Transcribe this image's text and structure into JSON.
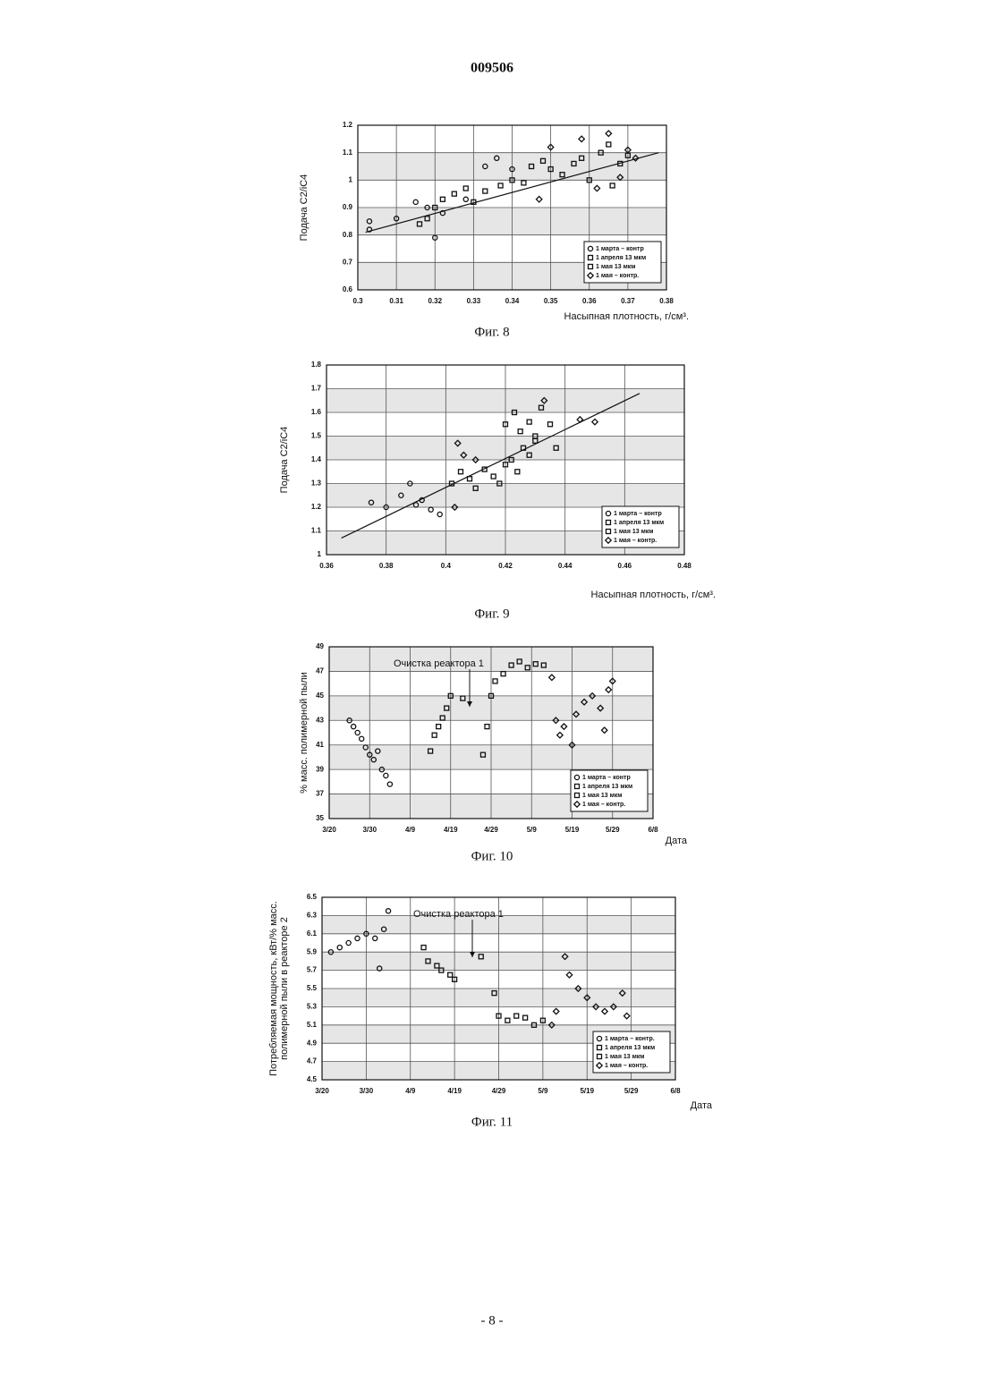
{
  "header": "009506",
  "footer": "- 8 -",
  "chart_data": [
    {
      "type": "scatter",
      "caption": "Фиг. 8",
      "ylabel": [
        "Подача C2/iC4"
      ],
      "xlabel": "Насыпная плотность, г/см³.",
      "xlim": [
        0.3,
        0.38
      ],
      "xticks": [
        0.3,
        0.31,
        0.32,
        0.33,
        0.34,
        0.35,
        0.36,
        0.37,
        0.38
      ],
      "ylim": [
        0.6,
        1.2
      ],
      "yticks": [
        0.6,
        0.7,
        0.8,
        0.9,
        1,
        1.1,
        1.2
      ],
      "grid": true,
      "legend": "lower right",
      "trendline": {
        "x": [
          0.302,
          0.378
        ],
        "y": [
          0.81,
          1.1
        ]
      },
      "series": [
        {
          "name": "1 марта – контр",
          "marker": "circle",
          "color": "#111111",
          "x": [
            0.303,
            0.303,
            0.31,
            0.315,
            0.318,
            0.32,
            0.322,
            0.328,
            0.333,
            0.336,
            0.34
          ],
          "values": [
            0.85,
            0.82,
            0.86,
            0.92,
            0.9,
            0.79,
            0.88,
            0.93,
            1.05,
            1.08,
            1.04
          ]
        },
        {
          "name": "1 апреля 13 мкм",
          "marker": "square",
          "color": "#111111",
          "x": [
            0.316,
            0.318,
            0.32,
            0.322,
            0.325,
            0.328,
            0.33,
            0.333,
            0.337,
            0.34,
            0.343
          ],
          "values": [
            0.84,
            0.86,
            0.9,
            0.93,
            0.95,
            0.97,
            0.92,
            0.96,
            0.98,
            1.0,
            0.99
          ]
        },
        {
          "name": "1 мая 13 мкм",
          "marker": "square",
          "color": "#111111",
          "x": [
            0.345,
            0.348,
            0.35,
            0.353,
            0.356,
            0.358,
            0.36,
            0.363,
            0.365,
            0.368,
            0.37,
            0.366
          ],
          "values": [
            1.05,
            1.07,
            1.04,
            1.02,
            1.06,
            1.08,
            1.0,
            1.1,
            1.13,
            1.06,
            1.09,
            0.98
          ]
        },
        {
          "name": "1 мая – контр.",
          "marker": "diamond",
          "color": "#111111",
          "x": [
            0.347,
            0.35,
            0.358,
            0.362,
            0.365,
            0.368,
            0.37,
            0.372
          ],
          "values": [
            0.93,
            1.12,
            1.15,
            0.97,
            1.17,
            1.01,
            1.11,
            1.08
          ]
        }
      ]
    },
    {
      "type": "scatter",
      "caption": "Фиг. 9",
      "ylabel": [
        "Подача C2/iC4"
      ],
      "xlabel": "Насыпная плотность, г/см³.",
      "xlim": [
        0.36,
        0.48
      ],
      "xticks": [
        0.36,
        0.38,
        0.4,
        0.42,
        0.44,
        0.46,
        0.48
      ],
      "ylim": [
        1,
        1.8
      ],
      "yticks": [
        1,
        1.1,
        1.2,
        1.3,
        1.4,
        1.5,
        1.6,
        1.7,
        1.8
      ],
      "grid": true,
      "legend": "lower right",
      "trendline": {
        "x": [
          0.365,
          0.465
        ],
        "y": [
          1.07,
          1.68
        ]
      },
      "series": [
        {
          "name": "1 марта – контр",
          "marker": "circle",
          "color": "#111111",
          "x": [
            0.375,
            0.38,
            0.385,
            0.39,
            0.395,
            0.398,
            0.388,
            0.392
          ],
          "values": [
            1.22,
            1.2,
            1.25,
            1.21,
            1.19,
            1.17,
            1.3,
            1.23
          ]
        },
        {
          "name": "1 апреля 13 мкм",
          "marker": "square",
          "color": "#111111",
          "x": [
            0.402,
            0.405,
            0.408,
            0.41,
            0.413,
            0.416,
            0.418,
            0.42,
            0.422,
            0.424,
            0.426,
            0.428,
            0.43
          ],
          "values": [
            1.3,
            1.35,
            1.32,
            1.28,
            1.36,
            1.33,
            1.3,
            1.38,
            1.4,
            1.35,
            1.45,
            1.42,
            1.5
          ]
        },
        {
          "name": "1 мая 13 мкм",
          "marker": "square",
          "color": "#111111",
          "x": [
            0.42,
            0.423,
            0.425,
            0.428,
            0.43,
            0.432,
            0.435,
            0.437
          ],
          "values": [
            1.55,
            1.6,
            1.52,
            1.56,
            1.48,
            1.62,
            1.55,
            1.45
          ]
        },
        {
          "name": "1 мая – контр.",
          "marker": "diamond",
          "color": "#111111",
          "x": [
            0.404,
            0.406,
            0.41,
            0.433,
            0.445,
            0.45,
            0.403
          ],
          "values": [
            1.47,
            1.42,
            1.4,
            1.65,
            1.57,
            1.56,
            1.2
          ]
        }
      ]
    },
    {
      "type": "scatter",
      "caption": "Фиг. 10",
      "ylabel": [
        "% масс. полимерной пыли"
      ],
      "xlabel": "Дата",
      "annotation": "Очистка реактора 1",
      "xlim": [
        "3/20",
        "6/8"
      ],
      "xticks": [
        "3/20",
        "3/30",
        "4/9",
        "4/19",
        "4/29",
        "5/9",
        "5/19",
        "5/29",
        "6/8"
      ],
      "ylim": [
        35,
        49
      ],
      "yticks": [
        35,
        37,
        39,
        41,
        43,
        45,
        47,
        49
      ],
      "grid": true,
      "legend": "lower right",
      "series": [
        {
          "name": "1 марта – контр",
          "marker": "circle",
          "color": "#111111",
          "x": [
            "3/25",
            "3/26",
            "3/27",
            "3/28",
            "3/29",
            "3/30",
            "3/31",
            "4/1",
            "4/2",
            "4/3",
            "4/4"
          ],
          "values": [
            43,
            42.5,
            42,
            41.5,
            40.8,
            40.2,
            39.8,
            40.5,
            39,
            38.5,
            37.8
          ]
        },
        {
          "name": "1 апреля 13 мкм",
          "marker": "square",
          "color": "#111111",
          "x": [
            "4/14",
            "4/15",
            "4/16",
            "4/17",
            "4/18",
            "4/19",
            "4/22"
          ],
          "values": [
            40.5,
            41.8,
            42.5,
            43.2,
            44,
            45,
            44.8
          ]
        },
        {
          "name": "1 мая 13 мкм",
          "marker": "square",
          "color": "#111111",
          "x": [
            "4/27",
            "4/28",
            "4/29",
            "4/30",
            "5/2",
            "5/4",
            "5/6",
            "5/8",
            "5/10",
            "5/12"
          ],
          "values": [
            40.2,
            42.5,
            45,
            46.2,
            46.8,
            47.5,
            47.8,
            47.3,
            47.6,
            47.5
          ]
        },
        {
          "name": "1 мая – контр.",
          "marker": "diamond",
          "color": "#111111",
          "x": [
            "5/14",
            "5/15",
            "5/16",
            "5/17",
            "5/19",
            "5/20",
            "5/22",
            "5/24",
            "5/26",
            "5/28",
            "5/29",
            "5/27"
          ],
          "values": [
            46.5,
            43,
            41.8,
            42.5,
            41,
            43.5,
            44.5,
            45,
            44,
            45.5,
            46.2,
            42.2
          ]
        }
      ]
    },
    {
      "type": "scatter",
      "caption": "Фиг. 11",
      "ylabel": [
        "Потребляемая мощность, кВт/% масс.",
        "полимерной пыли в реакторе 2"
      ],
      "xlabel": "Дата",
      "annotation": "Очистка реактора 1",
      "xlim": [
        "3/20",
        "6/8"
      ],
      "xticks": [
        "3/20",
        "3/30",
        "4/9",
        "4/19",
        "4/29",
        "5/9",
        "5/19",
        "5/29",
        "6/8"
      ],
      "ylim": [
        4.5,
        6.5
      ],
      "yticks": [
        4.5,
        4.7,
        4.9,
        5.1,
        5.3,
        5.5,
        5.7,
        5.9,
        6.1,
        6.3,
        6.5
      ],
      "grid": true,
      "legend": "lower right",
      "series": [
        {
          "name": "1 марта – контр.",
          "marker": "circle",
          "color": "#111111",
          "x": [
            "3/22",
            "3/24",
            "3/26",
            "3/28",
            "3/30",
            "4/1",
            "4/2",
            "4/3",
            "4/4"
          ],
          "values": [
            5.9,
            5.95,
            6.0,
            6.05,
            6.1,
            6.05,
            5.72,
            6.15,
            6.35
          ]
        },
        {
          "name": "1 апреля 13 мкм",
          "marker": "square",
          "color": "#111111",
          "x": [
            "4/12",
            "4/13",
            "4/15",
            "4/16",
            "4/18",
            "4/19",
            "4/25"
          ],
          "values": [
            5.95,
            5.8,
            5.75,
            5.7,
            5.65,
            5.6,
            5.85
          ]
        },
        {
          "name": "1 мая 13 мкм",
          "marker": "square",
          "color": "#111111",
          "x": [
            "4/28",
            "4/29",
            "5/1",
            "5/3",
            "5/5",
            "5/7",
            "5/9"
          ],
          "values": [
            5.45,
            5.2,
            5.15,
            5.2,
            5.18,
            5.1,
            5.15
          ]
        },
        {
          "name": "1 мая – контр.",
          "marker": "diamond",
          "color": "#111111",
          "x": [
            "5/11",
            "5/12",
            "5/14",
            "5/15",
            "5/17",
            "5/19",
            "5/21",
            "5/23",
            "5/25",
            "5/27",
            "5/28"
          ],
          "values": [
            5.1,
            5.25,
            5.85,
            5.65,
            5.5,
            5.4,
            5.3,
            5.25,
            5.3,
            5.45,
            5.2
          ]
        }
      ]
    }
  ]
}
